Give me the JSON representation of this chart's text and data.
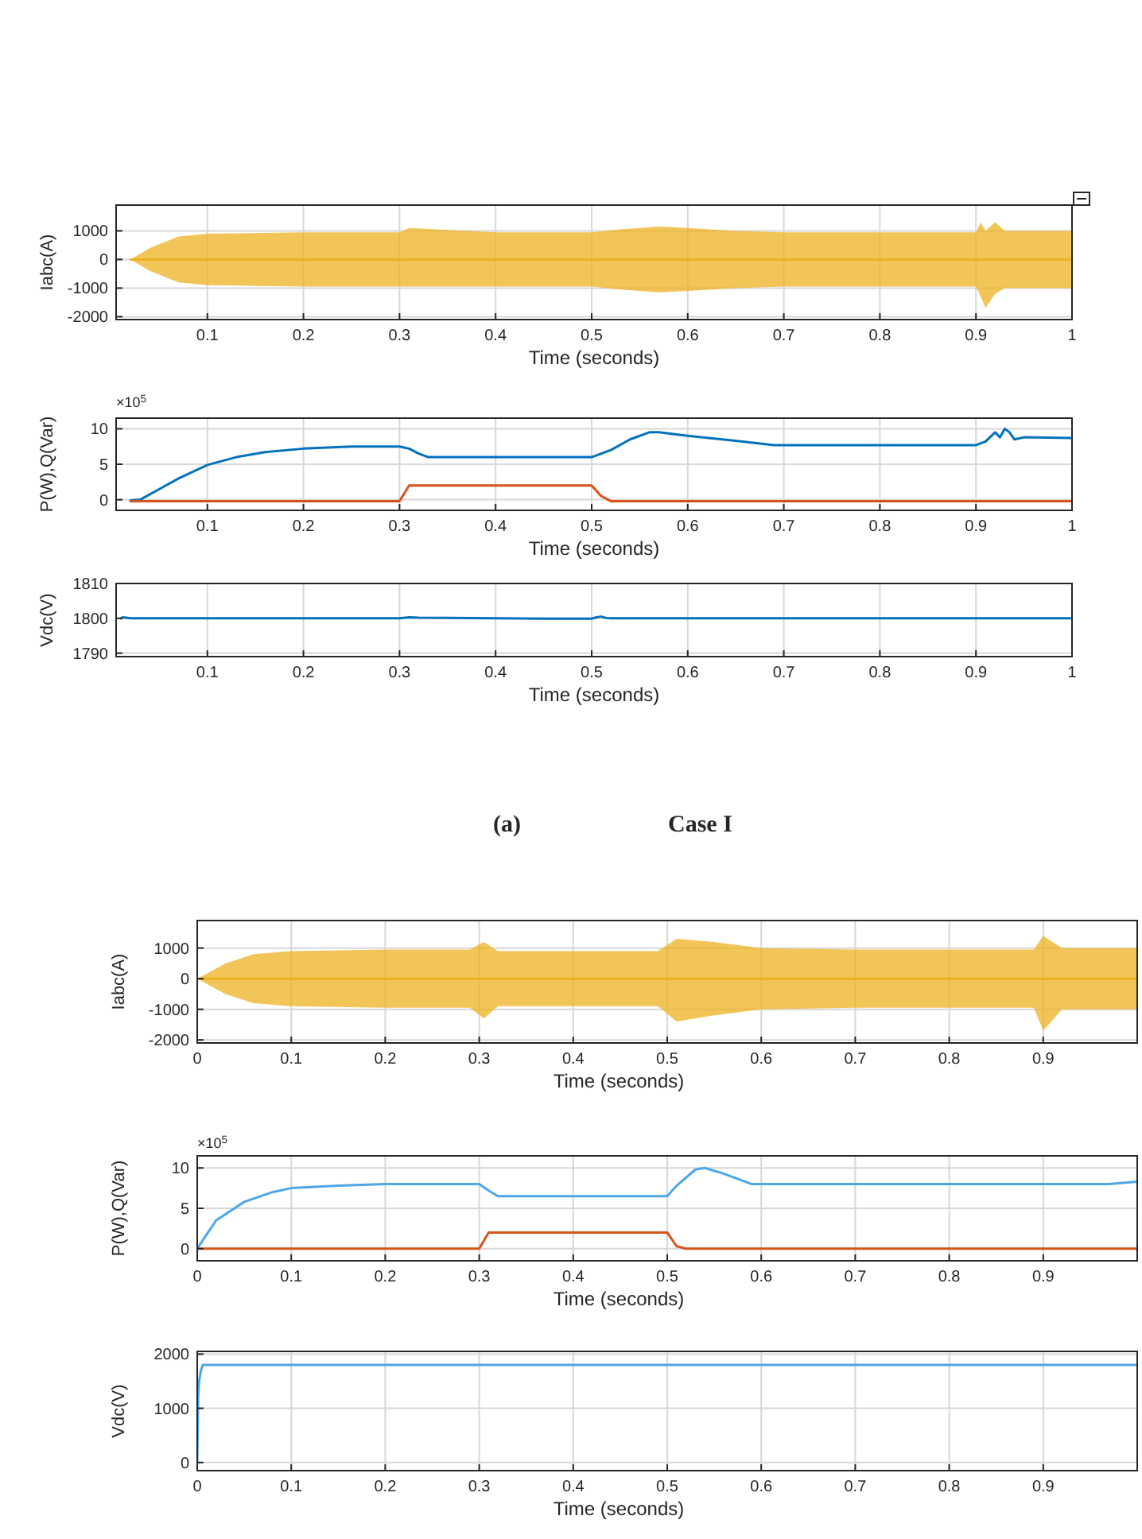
{
  "chart_data": [
    {
      "type": "line",
      "ylabel": "Iabc(A)",
      "xlabel": "Time (seconds)",
      "xlim": [
        0.005,
        1
      ],
      "xticks": [
        0.1,
        0.2,
        0.3,
        0.4,
        0.5,
        0.6,
        0.7,
        0.8,
        0.9,
        1
      ],
      "ylim": [
        -2100,
        1900
      ],
      "yticks": [
        -2000,
        -1000,
        0,
        1000
      ],
      "grid": true,
      "series": [
        {
          "color": "#edb120",
          "x": [
            0.02,
            0.04,
            0.07,
            0.1,
            0.2,
            0.3,
            0.31,
            0.4,
            0.5,
            0.53,
            0.57,
            0.6,
            0.65,
            0.7,
            0.8,
            0.9,
            0.905,
            0.91,
            0.92,
            0.93,
            0.95,
            1
          ],
          "values": [
            0,
            0,
            0,
            0,
            0,
            0,
            0,
            0,
            0,
            0,
            0,
            0,
            0,
            0,
            0,
            0,
            0,
            0,
            0,
            0,
            0,
            0
          ],
          "upper": [
            0,
            400,
            800,
            900,
            950,
            950,
            1100,
            950,
            950,
            1050,
            1150,
            1100,
            1000,
            950,
            950,
            950,
            1300,
            1000,
            1300,
            1000,
            1000,
            1000
          ],
          "lower": [
            0,
            -400,
            -800,
            -900,
            -950,
            -950,
            -950,
            -950,
            -950,
            -1050,
            -1150,
            -1100,
            -1000,
            -950,
            -950,
            -950,
            -1300,
            -1700,
            -1200,
            -1000,
            -1000,
            -1000
          ]
        }
      ]
    },
    {
      "type": "line",
      "ylabel": "P(W),Q(Var)",
      "xlabel": "Time (seconds)",
      "xlim": [
        0.005,
        1
      ],
      "xticks": [
        0.1,
        0.2,
        0.3,
        0.4,
        0.5,
        0.6,
        0.7,
        0.8,
        0.9,
        1
      ],
      "ylim": [
        -1.5,
        11.5
      ],
      "yticks": [
        0,
        5,
        10
      ],
      "grid": true,
      "annotations": [
        "×10$^{5}$"
      ],
      "series": [
        {
          "color": "#0072bd",
          "x": [
            0.02,
            0.03,
            0.05,
            0.07,
            0.1,
            0.13,
            0.16,
            0.2,
            0.25,
            0.3,
            0.31,
            0.32,
            0.33,
            0.4,
            0.5,
            0.51,
            0.52,
            0.54,
            0.56,
            0.57,
            0.6,
            0.65,
            0.69,
            0.7,
            0.8,
            0.9,
            0.91,
            0.92,
            0.925,
            0.93,
            0.935,
            0.94,
            0.95,
            1
          ],
          "values": [
            -0.1,
            0,
            1.5,
            3,
            4.9,
            6,
            6.7,
            7.2,
            7.5,
            7.5,
            7.2,
            6.5,
            6,
            6,
            6,
            6.5,
            7,
            8.5,
            9.5,
            9.5,
            9,
            8.3,
            7.7,
            7.7,
            7.7,
            7.7,
            8.2,
            9.5,
            8.8,
            10,
            9.5,
            8.5,
            8.8,
            8.7
          ]
        },
        {
          "color": "#d95319",
          "x": [
            0.02,
            0.3,
            0.31,
            0.5,
            0.51,
            0.52,
            1
          ],
          "values": [
            -0.2,
            -0.2,
            2,
            2,
            0.5,
            -0.2,
            -0.2
          ]
        }
      ]
    },
    {
      "type": "line",
      "ylabel": "Vdc(V)",
      "xlabel": "Time (seconds)",
      "xlim": [
        0.005,
        1
      ],
      "xticks": [
        0.1,
        0.2,
        0.3,
        0.4,
        0.5,
        0.6,
        0.7,
        0.8,
        0.9,
        1
      ],
      "ylim": [
        1789,
        1810
      ],
      "yticks": [
        1790,
        1800,
        1810
      ],
      "grid": true,
      "annotations": [
        "(a)",
        "Case I"
      ],
      "series": [
        {
          "color": "#0072bd",
          "x": [
            0.01,
            0.012,
            0.02,
            0.3,
            0.31,
            0.32,
            0.35,
            0.4,
            0.45,
            0.5,
            0.505,
            0.51,
            0.515,
            0.52,
            1
          ],
          "values": [
            1800,
            1800.3,
            1800,
            1800,
            1800.3,
            1800.2,
            1800.1,
            1800,
            1799.9,
            1799.9,
            1800.3,
            1800.5,
            1800.1,
            1800,
            1800
          ]
        }
      ]
    },
    {
      "type": "line",
      "ylabel": "Iabc(A)",
      "xlabel": "Time (seconds)",
      "xlim": [
        0,
        1
      ],
      "xticks": [
        0,
        0.1,
        0.2,
        0.3,
        0.4,
        0.5,
        0.6,
        0.7,
        0.8,
        0.9
      ],
      "ylim": [
        -2100,
        1900
      ],
      "yticks": [
        -2000,
        -1000,
        0,
        1000
      ],
      "grid": true,
      "series": [
        {
          "color": "#edb120",
          "x": [
            0,
            0.03,
            0.06,
            0.1,
            0.2,
            0.29,
            0.305,
            0.32,
            0.4,
            0.49,
            0.51,
            0.55,
            0.6,
            0.7,
            0.8,
            0.89,
            0.9,
            0.92,
            1
          ],
          "values": [
            0,
            0,
            0,
            0,
            0,
            0,
            0,
            0,
            0,
            0,
            0,
            0,
            0,
            0,
            0,
            0,
            0,
            0,
            0
          ],
          "upper": [
            0,
            500,
            800,
            900,
            950,
            950,
            1200,
            900,
            900,
            900,
            1300,
            1200,
            1000,
            950,
            950,
            950,
            1400,
            1000,
            1000
          ],
          "lower": [
            0,
            -500,
            -800,
            -900,
            -950,
            -950,
            -1300,
            -900,
            -900,
            -900,
            -1400,
            -1200,
            -1000,
            -950,
            -950,
            -950,
            -1700,
            -1000,
            -1000
          ]
        }
      ]
    },
    {
      "type": "line",
      "ylabel": "P(W),Q(Var)",
      "xlabel": "Time (seconds)",
      "xlim": [
        0,
        1
      ],
      "xticks": [
        0,
        0.1,
        0.2,
        0.3,
        0.4,
        0.5,
        0.6,
        0.7,
        0.8,
        0.9
      ],
      "ylim": [
        -1.5,
        11.5
      ],
      "yticks": [
        0,
        5,
        10
      ],
      "grid": true,
      "annotations": [
        "×10$^{5}$"
      ],
      "series": [
        {
          "color": "#4da6e8",
          "x": [
            0,
            0.02,
            0.05,
            0.08,
            0.1,
            0.15,
            0.2,
            0.3,
            0.31,
            0.32,
            0.4,
            0.5,
            0.51,
            0.53,
            0.54,
            0.56,
            0.59,
            0.6,
            0.7,
            0.9,
            0.97,
            1
          ],
          "values": [
            0,
            3.5,
            5.8,
            7,
            7.5,
            7.8,
            8,
            8,
            7.2,
            6.5,
            6.5,
            6.5,
            7.8,
            9.8,
            10,
            9.3,
            8,
            8,
            8,
            8,
            8,
            8.3
          ]
        },
        {
          "color": "#d95319",
          "x": [
            0,
            0.3,
            0.31,
            0.5,
            0.51,
            0.52,
            1
          ],
          "values": [
            0,
            0,
            2,
            2,
            0.3,
            0,
            0
          ]
        }
      ]
    },
    {
      "type": "line",
      "ylabel": "Vdc(V)",
      "xlabel": "Time (seconds)",
      "xlim": [
        0,
        1
      ],
      "xticks": [
        0,
        0.1,
        0.2,
        0.3,
        0.4,
        0.5,
        0.6,
        0.7,
        0.8,
        0.9
      ],
      "ylim": [
        -150,
        2050
      ],
      "yticks": [
        0,
        1000,
        2000
      ],
      "grid": true,
      "series": [
        {
          "color": "#4da6e8",
          "x": [
            0,
            0.001,
            0.002,
            0.004,
            0.006,
            0.01,
            1
          ],
          "values": [
            0,
            1200,
            1500,
            1700,
            1800,
            1800,
            1800
          ]
        }
      ]
    }
  ]
}
